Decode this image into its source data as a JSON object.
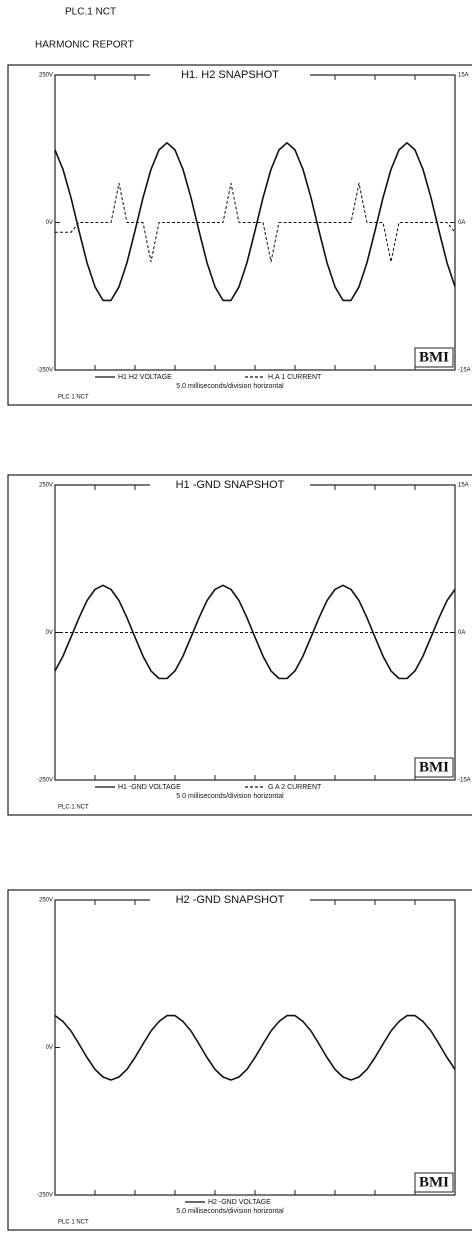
{
  "header": {
    "site": "PLC.1 NCT",
    "report": "HARMONIC REPORT"
  },
  "chart_data": [
    {
      "type": "line",
      "title": "H1. H2 SNAPSHOT",
      "xlabel": "5.0 milliseconds/division horizontal",
      "footer": "PLC 1 NCT",
      "logo": "BMI",
      "x": [
        0,
        1,
        2,
        3,
        4,
        5,
        6,
        7,
        8,
        9,
        10,
        11,
        12,
        13,
        14,
        15,
        16,
        17,
        18,
        19,
        20,
        21,
        22,
        23,
        24,
        25,
        26,
        27,
        28,
        29,
        30,
        31,
        32,
        33,
        34,
        35,
        36,
        37,
        38,
        39,
        40,
        41,
        42,
        43,
        44,
        45,
        46,
        47,
        48,
        49,
        50
      ],
      "xlim": [
        0,
        50
      ],
      "xticks": [
        0,
        5,
        10,
        15,
        20,
        25,
        30,
        35,
        40,
        45,
        50
      ],
      "ylim": [
        -250,
        250
      ],
      "yticks": [
        {
          "value": -250,
          "label": "-250V"
        },
        {
          "value": 0,
          "label": "0V"
        },
        {
          "value": 250,
          "label": "250V"
        }
      ],
      "y2lim": [
        -15,
        15
      ],
      "y2ticks": [
        {
          "value": -15,
          "label": "-15A"
        },
        {
          "value": 0,
          "label": "0A"
        },
        {
          "value": 15,
          "label": "15A"
        }
      ],
      "series": [
        {
          "name": "H1 H2 VOLTAGE",
          "color": "#111111",
          "line_style": "solid",
          "values": [
            123,
            90,
            42,
            -14,
            -68,
            -109,
            -132,
            -132,
            -109,
            -68,
            -14,
            42,
            90,
            123,
            135,
            123,
            90,
            42,
            -14,
            -68,
            -109,
            -132,
            -132,
            -109,
            -68,
            -14,
            42,
            90,
            123,
            135,
            123,
            90,
            42,
            -14,
            -68,
            -109,
            -132,
            -132,
            -109,
            -68,
            -14,
            42,
            90,
            123,
            135,
            123,
            90,
            42,
            -14,
            -68,
            -109
          ]
        },
        {
          "name": "H.A 1 CURRENT",
          "color": "#111111",
          "line_style": "dashed",
          "axis": "y2",
          "values": [
            -1,
            -1,
            -1,
            0,
            0,
            0,
            0,
            0,
            4,
            0,
            0,
            0,
            -4,
            0,
            0,
            0,
            0,
            0,
            0,
            0,
            0,
            0,
            4,
            0,
            0,
            0,
            0,
            -4,
            0,
            0,
            0,
            0,
            0,
            0,
            0,
            0,
            0,
            0,
            4,
            0,
            0,
            0,
            -4,
            0,
            0,
            0,
            0,
            0,
            0,
            0,
            -1
          ]
        }
      ]
    },
    {
      "type": "line",
      "title": "H1 -GND SNAPSHOT",
      "xlabel": "5 0 milliseconds/division horizontal",
      "footer": "PLC.1 NCT",
      "logo": "BMI",
      "x": [
        0,
        1,
        2,
        3,
        4,
        5,
        6,
        7,
        8,
        9,
        10,
        11,
        12,
        13,
        14,
        15,
        16,
        17,
        18,
        19,
        20,
        21,
        22,
        23,
        24,
        25,
        26,
        27,
        28,
        29,
        30,
        31,
        32,
        33,
        34,
        35,
        36,
        37,
        38,
        39,
        40,
        41,
        42,
        43,
        44,
        45,
        46,
        47,
        48,
        49,
        50
      ],
      "xlim": [
        0,
        50
      ],
      "xticks": [
        0,
        5,
        10,
        15,
        20,
        25,
        30,
        35,
        40,
        45,
        50
      ],
      "ylim": [
        -250,
        250
      ],
      "yticks": [
        {
          "value": -250,
          "label": "-250V"
        },
        {
          "value": 0,
          "label": "0V"
        },
        {
          "value": 250,
          "label": "250V"
        }
      ],
      "y2lim": [
        -15,
        15
      ],
      "y2ticks": [
        {
          "value": -15,
          "label": "-15A"
        },
        {
          "value": 0,
          "label": "0A"
        },
        {
          "value": 15,
          "label": "15A"
        }
      ],
      "series": [
        {
          "name": "H1 -GND VOLTAGE",
          "color": "#111111",
          "line_style": "solid",
          "values": [
            -65,
            -40,
            -8,
            25,
            54,
            73,
            80,
            73,
            54,
            25,
            -8,
            -40,
            -65,
            -78,
            -78,
            -65,
            -40,
            -8,
            25,
            54,
            73,
            80,
            73,
            54,
            25,
            -8,
            -40,
            -65,
            -78,
            -78,
            -65,
            -40,
            -8,
            25,
            54,
            73,
            80,
            73,
            54,
            25,
            -8,
            -40,
            -65,
            -78,
            -78,
            -65,
            -40,
            -8,
            25,
            54,
            73
          ]
        },
        {
          "name": "G A 2 CURRENT",
          "color": "#111111",
          "line_style": "dashed",
          "axis": "y2",
          "values": [
            0,
            0,
            0,
            0,
            0,
            0,
            0,
            0,
            0,
            0,
            0,
            0,
            0,
            0,
            0,
            0,
            0,
            0,
            0,
            0,
            0,
            0,
            0,
            0,
            0,
            0,
            0,
            0,
            0,
            0,
            0,
            0,
            0,
            0,
            0,
            0,
            0,
            0,
            0,
            0,
            0,
            0,
            0,
            0,
            0,
            0,
            0,
            0,
            0,
            0,
            0
          ]
        }
      ]
    },
    {
      "type": "line",
      "title": "H2 -GND SNAPSHOT",
      "xlabel": "5.0 milliseconds/division horizontal",
      "footer": "PLC 1 NCT",
      "logo": "BMI",
      "x": [
        0,
        1,
        2,
        3,
        4,
        5,
        6,
        7,
        8,
        9,
        10,
        11,
        12,
        13,
        14,
        15,
        16,
        17,
        18,
        19,
        20,
        21,
        22,
        23,
        24,
        25,
        26,
        27,
        28,
        29,
        30,
        31,
        32,
        33,
        34,
        35,
        36,
        37,
        38,
        39,
        40,
        41,
        42,
        43,
        44,
        45,
        46,
        47,
        48,
        49,
        50
      ],
      "xlim": [
        0,
        50
      ],
      "xticks": [
        0,
        5,
        10,
        15,
        20,
        25,
        30,
        35,
        40,
        45,
        50
      ],
      "ylim": [
        -250,
        250
      ],
      "yticks": [
        {
          "value": -250,
          "label": "-250V"
        },
        {
          "value": 0,
          "label": "0V"
        },
        {
          "value": 250,
          "label": "250V"
        }
      ],
      "series": [
        {
          "name": "H2 -GND VOLTAGE",
          "color": "#111111",
          "line_style": "solid",
          "values": [
            54,
            44,
            28,
            6,
            -17,
            -37,
            -50,
            -55,
            -50,
            -37,
            -17,
            6,
            28,
            44,
            54,
            54,
            44,
            28,
            6,
            -17,
            -37,
            -50,
            -55,
            -50,
            -37,
            -17,
            6,
            28,
            44,
            54,
            54,
            44,
            28,
            6,
            -17,
            -37,
            -50,
            -55,
            -50,
            -37,
            -17,
            6,
            28,
            44,
            54,
            54,
            44,
            28,
            6,
            -17,
            -37
          ]
        }
      ]
    }
  ]
}
